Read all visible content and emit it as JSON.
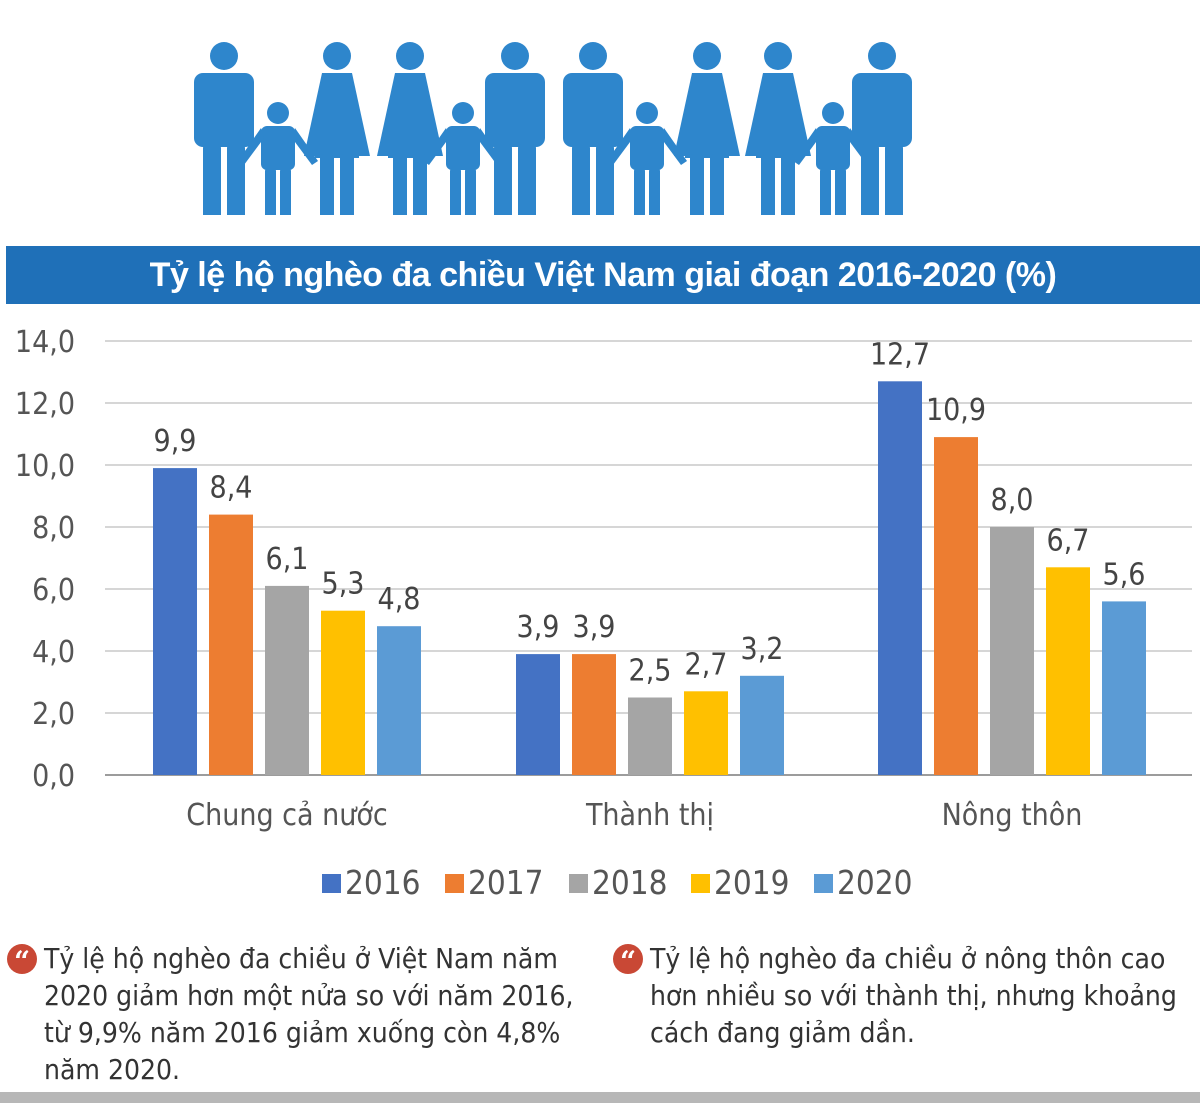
{
  "title": "Tỷ lệ hộ nghèo đa chiều Việt Nam giai đoạn 2016-2020 (%)",
  "colors": {
    "title_bar": "#1f70b8",
    "family_icon": "#2e86cc",
    "quote_icon": "#c94835",
    "series": [
      "#4472c4",
      "#ed7d31",
      "#a5a5a5",
      "#ffc000",
      "#5b9bd5"
    ]
  },
  "chart_data": {
    "type": "bar",
    "title": "Tỷ lệ hộ nghèo đa chiều Việt Nam giai đoạn 2016-2020 (%)",
    "categories": [
      "Chung cả nước",
      "Thành thị",
      "Nông thôn"
    ],
    "series": [
      {
        "name": "2016",
        "values": [
          9.9,
          3.9,
          12.7
        ],
        "labels": [
          "9,9",
          "3,9",
          "12,7"
        ]
      },
      {
        "name": "2017",
        "values": [
          8.4,
          3.9,
          10.9
        ],
        "labels": [
          "8,4",
          "3,9",
          "10,9"
        ]
      },
      {
        "name": "2018",
        "values": [
          6.1,
          2.5,
          8.0
        ],
        "labels": [
          "6,1",
          "2,5",
          "8,0"
        ]
      },
      {
        "name": "2019",
        "values": [
          5.3,
          2.7,
          6.7
        ],
        "labels": [
          "5,3",
          "2,7",
          "6,7"
        ]
      },
      {
        "name": "2020",
        "values": [
          4.8,
          3.2,
          5.6
        ],
        "labels": [
          "4,8",
          "3,2",
          "5,6"
        ]
      }
    ],
    "ylim": [
      0,
      14
    ],
    "yticks": [
      0,
      2,
      4,
      6,
      8,
      10,
      12,
      14
    ],
    "ytick_labels": [
      "0,0",
      "2,0",
      "4,0",
      "6,0",
      "8,0",
      "10,0",
      "12,0",
      "14,0"
    ],
    "grid": true,
    "legend": "bottom",
    "xlabel": "",
    "ylabel": ""
  },
  "notes": [
    {
      "text": "Tỷ lệ hộ nghèo đa chiều ở Việt Nam năm 2020 giảm hơn một nửa so với năm 2016, từ 9,9% năm 2016 giảm xuống còn 4,8% năm 2020."
    },
    {
      "text": "Tỷ lệ hộ nghèo đa chiều ở nông thôn cao hơn nhiều so với thành thị, nhưng khoảng cách đang giảm dần."
    }
  ]
}
